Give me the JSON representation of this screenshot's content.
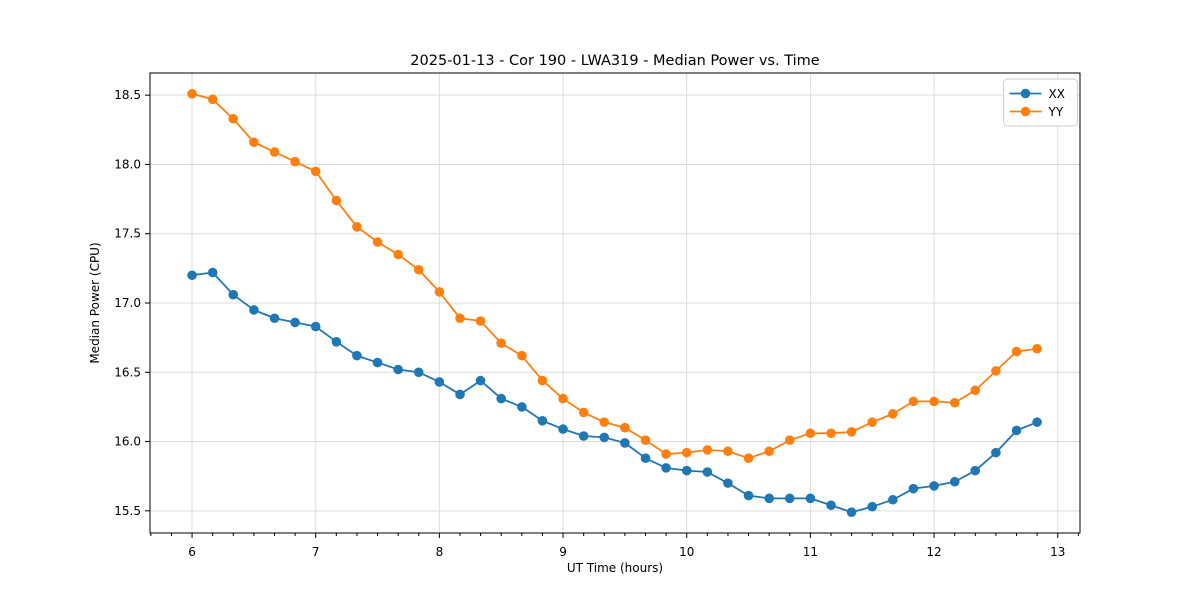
{
  "chart_data": {
    "type": "line",
    "title": "2025-01-13 - Cor 190 - LWA319 - Median Power vs. Time",
    "xlabel": "UT Time (hours)",
    "ylabel": "Median Power (CPU)",
    "xlim": [
      5.66,
      13.18
    ],
    "ylim": [
      15.34,
      18.66
    ],
    "x_ticks": [
      6,
      7,
      8,
      9,
      10,
      11,
      12,
      13
    ],
    "x_tick_labels": [
      "6",
      "7",
      "8",
      "9",
      "10",
      "11",
      "12",
      "13"
    ],
    "y_ticks": [
      15.5,
      16.0,
      16.5,
      17.0,
      17.5,
      18.0,
      18.5
    ],
    "y_tick_labels": [
      "15.5",
      "16.0",
      "16.5",
      "17.0",
      "17.5",
      "18.0",
      "18.5"
    ],
    "x_minor_ticks_per_hour": 6,
    "grid": true,
    "legend_position": "upper right",
    "x": [
      6.0,
      6.167,
      6.333,
      6.5,
      6.667,
      6.833,
      7.0,
      7.167,
      7.333,
      7.5,
      7.667,
      7.833,
      8.0,
      8.167,
      8.333,
      8.5,
      8.667,
      8.833,
      9.0,
      9.167,
      9.333,
      9.5,
      9.667,
      9.833,
      10.0,
      10.167,
      10.333,
      10.5,
      10.667,
      10.833,
      11.0,
      11.167,
      11.333,
      11.5,
      11.667,
      11.833,
      12.0,
      12.167,
      12.333,
      12.5,
      12.667,
      12.833
    ],
    "series": [
      {
        "name": "XX",
        "color": "#1f77b4",
        "values": [
          17.2,
          17.22,
          17.06,
          16.95,
          16.89,
          16.86,
          16.83,
          16.72,
          16.62,
          16.57,
          16.52,
          16.5,
          16.43,
          16.34,
          16.44,
          16.31,
          16.25,
          16.15,
          16.09,
          16.04,
          16.03,
          15.99,
          15.88,
          15.81,
          15.79,
          15.78,
          15.7,
          15.61,
          15.59,
          15.59,
          15.59,
          15.54,
          15.49,
          15.53,
          15.58,
          15.66,
          15.68,
          15.71,
          15.79,
          15.92,
          16.08,
          16.14
        ]
      },
      {
        "name": "YY",
        "color": "#ff7f0e",
        "values": [
          18.51,
          18.47,
          18.33,
          18.16,
          18.09,
          18.02,
          17.95,
          17.74,
          17.55,
          17.44,
          17.35,
          17.24,
          17.08,
          16.89,
          16.87,
          16.71,
          16.62,
          16.44,
          16.31,
          16.21,
          16.14,
          16.1,
          16.01,
          15.91,
          15.92,
          15.94,
          15.93,
          15.88,
          15.93,
          16.01,
          16.06,
          16.06,
          16.07,
          16.14,
          16.2,
          16.29,
          16.29,
          16.28,
          16.37,
          16.51,
          16.65,
          16.67
        ]
      }
    ],
    "style": {
      "grid_color": "#dcdcdc",
      "spine_color": "#000000",
      "tick_color": "#000000",
      "legend_border_color": "#cccccc",
      "legend_bg_color": "#ffffff",
      "marker_radius": 4.8,
      "line_width": 1.8
    }
  }
}
